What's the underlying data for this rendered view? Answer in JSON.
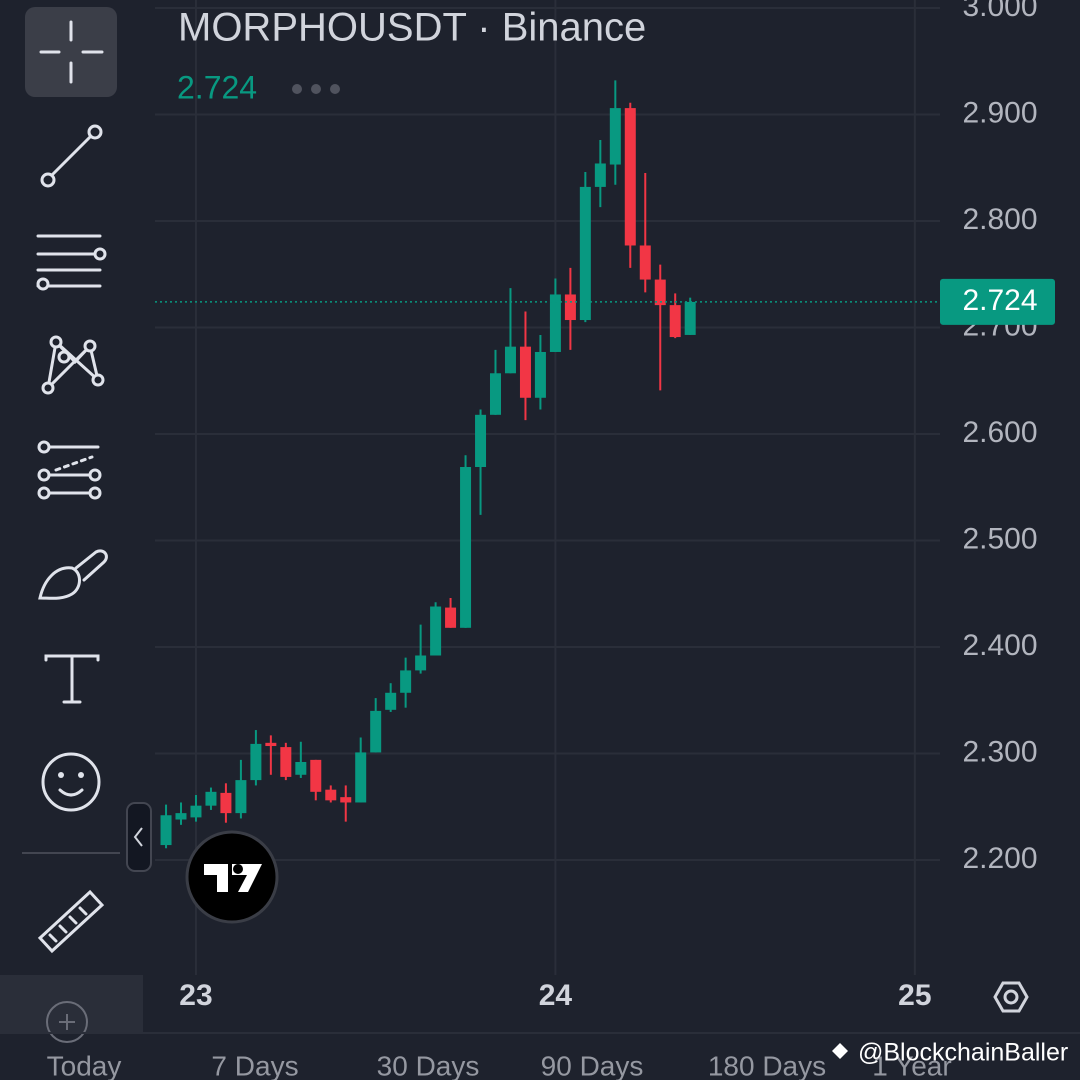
{
  "chart_data": {
    "type": "candlestick",
    "title": "MORPHOUSDT · Binance",
    "last_price": 2.724,
    "x": [
      22.9167,
      22.9583,
      23,
      23.0417,
      23.0833,
      23.125,
      23.1667,
      23.2083,
      23.25,
      23.2917,
      23.3333,
      23.375,
      23.4167,
      23.4583,
      23.5,
      23.5417,
      23.5833,
      23.625,
      23.6667,
      23.7083,
      23.75,
      23.7917,
      23.8333,
      23.875,
      23.9167,
      23.9583,
      24,
      24.0417,
      24.0833,
      24.125,
      24.1667,
      24.2083,
      24.25,
      24.2917,
      24.3333,
      24.375
    ],
    "open": [
      2.214,
      2.238,
      2.24,
      2.251,
      2.263,
      2.244,
      2.275,
      2.31,
      2.306,
      2.28,
      2.294,
      2.266,
      2.259,
      2.254,
      2.301,
      2.341,
      2.357,
      2.378,
      2.392,
      2.437,
      2.418,
      2.569,
      2.618,
      2.657,
      2.682,
      2.634,
      2.677,
      2.731,
      2.707,
      2.832,
      2.853,
      2.906,
      2.777,
      2.745,
      2.721,
      2.693
    ],
    "high": [
      2.252,
      2.254,
      2.261,
      2.268,
      2.272,
      2.294,
      2.322,
      2.317,
      2.31,
      2.311,
      2.294,
      2.27,
      2.27,
      2.315,
      2.352,
      2.366,
      2.39,
      2.421,
      2.442,
      2.446,
      2.58,
      2.623,
      2.679,
      2.737,
      2.715,
      2.693,
      2.746,
      2.756,
      2.846,
      2.876,
      2.932,
      2.911,
      2.845,
      2.759,
      2.732,
      2.728
    ],
    "low": [
      2.211,
      2.233,
      2.236,
      2.247,
      2.235,
      2.239,
      2.27,
      2.28,
      2.275,
      2.277,
      2.256,
      2.254,
      2.236,
      2.254,
      2.301,
      2.339,
      2.343,
      2.375,
      2.392,
      2.418,
      2.418,
      2.524,
      2.618,
      2.657,
      2.613,
      2.623,
      2.677,
      2.679,
      2.705,
      2.813,
      2.834,
      2.756,
      2.733,
      2.641,
      2.69,
      2.693
    ],
    "close": [
      2.242,
      2.244,
      2.251,
      2.264,
      2.244,
      2.275,
      2.309,
      2.307,
      2.278,
      2.292,
      2.264,
      2.256,
      2.254,
      2.301,
      2.34,
      2.357,
      2.378,
      2.392,
      2.438,
      2.418,
      2.569,
      2.618,
      2.657,
      2.682,
      2.634,
      2.677,
      2.731,
      2.707,
      2.832,
      2.854,
      2.906,
      2.777,
      2.745,
      2.721,
      2.691,
      2.724
    ],
    "up_color": "#089981",
    "down_color": "#f23645",
    "xlim": [
      22.886,
      25.07
    ],
    "xticks": [
      23,
      24,
      25
    ],
    "ylim": [
      2.092,
      3.0075
    ],
    "yticks": [
      {
        "value": 2.2,
        "label": "2.200"
      },
      {
        "value": 2.3,
        "label": "2.300"
      },
      {
        "value": 2.4,
        "label": "2.400"
      },
      {
        "value": 2.5,
        "label": "2.500"
      },
      {
        "value": 2.6,
        "label": "2.600"
      },
      {
        "value": 2.7,
        "label": "2.700"
      },
      {
        "value": 2.8,
        "label": "2.800"
      },
      {
        "value": 2.9,
        "label": "2.900"
      },
      {
        "value": 3,
        "label": "3.000"
      }
    ],
    "grid": true
  },
  "timeframes": [
    "Today",
    "7 Days",
    "30 Days",
    "90 Days",
    "180 Days",
    "1 Year"
  ],
  "watermark": "@BlockchainBaller"
}
